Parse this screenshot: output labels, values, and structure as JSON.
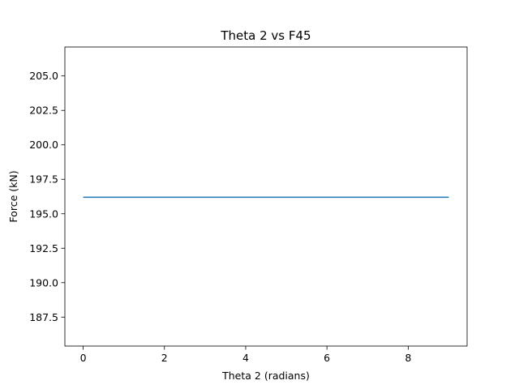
{
  "chart_data": {
    "type": "line",
    "title": "Theta 2 vs F45",
    "xlabel": "Theta 2 (radians)",
    "ylabel": "Force (kN)",
    "xlim": [
      -0.45,
      9.45
    ],
    "ylim": [
      185.4,
      207.1
    ],
    "xticks": [
      0,
      2,
      4,
      6,
      8
    ],
    "yticks": [
      187.5,
      190.0,
      192.5,
      195.0,
      197.5,
      200.0,
      202.5,
      205.0
    ],
    "xtick_labels": [
      "0",
      "2",
      "4",
      "6",
      "8"
    ],
    "ytick_labels": [
      "187.5",
      "190.0",
      "192.5",
      "195.0",
      "197.5",
      "200.0",
      "202.5",
      "205.0"
    ],
    "grid": false,
    "series": [
      {
        "color": "#1f77b4",
        "x": [
          0,
          9
        ],
        "y": [
          196.2,
          196.2
        ]
      }
    ]
  }
}
